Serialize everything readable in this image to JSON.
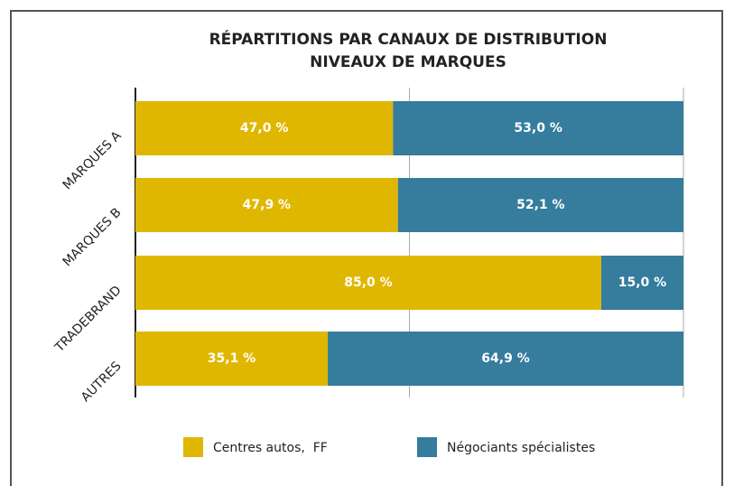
{
  "chart_data": {
    "type": "stacked-barh",
    "title": "RÉPARTITIONS PAR CANAUX DE DISTRIBUTION",
    "subtitle": "NIVEAUX DE MARQUES",
    "categories": [
      "MARQUES A",
      "MARQUES B",
      "TRADEBRAND",
      "AUTRES"
    ],
    "series": [
      {
        "name": "Centres autos,  FF",
        "color": "#e0b700",
        "values": [
          47.0,
          47.9,
          85.0,
          35.1
        ],
        "value_labels": [
          "47,0 %",
          "47,9 %",
          "85,0 %",
          "35,1 %"
        ]
      },
      {
        "name": "Négociants spécialistes",
        "color": "#357c9d",
        "values": [
          53.0,
          52.1,
          15.0,
          64.9
        ],
        "value_labels": [
          "53,0 %",
          "52,1 %",
          "15,0 %",
          "64,9 %"
        ]
      }
    ],
    "xlim": [
      0,
      100
    ],
    "xticks": [
      0,
      50,
      100
    ],
    "grid": true,
    "legend": "bottom"
  }
}
